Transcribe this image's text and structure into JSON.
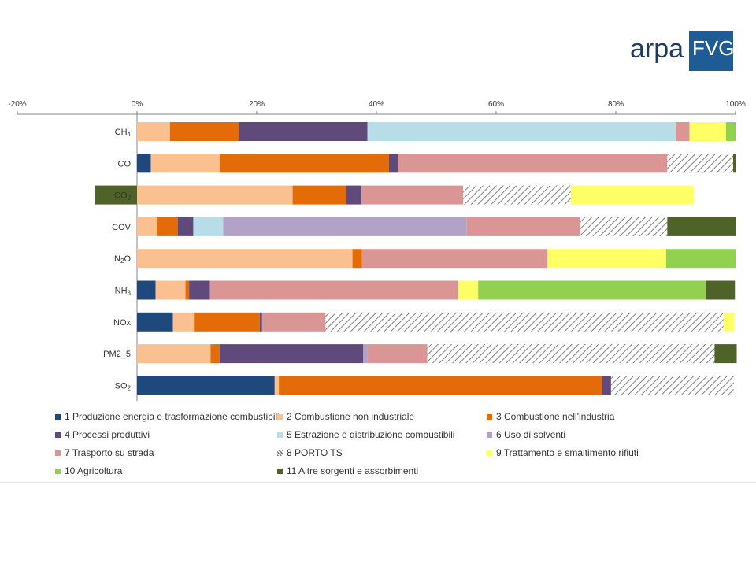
{
  "logo": {
    "text": "ARPA",
    "box_text": "FVG"
  },
  "chart_data": {
    "type": "bar",
    "orientation": "horizontal",
    "stacked": true,
    "percent_stacked": true,
    "xlim": [
      -20,
      100
    ],
    "x_ticks": [
      "-20%",
      "0%",
      "20%",
      "40%",
      "60%",
      "80%",
      "100%"
    ],
    "x_tick_values": [
      -20,
      0,
      20,
      40,
      60,
      80,
      100
    ],
    "categories": [
      "CH4",
      "CO",
      "CO2",
      "COV",
      "N2O",
      "NH3",
      "NOx",
      "PM2_5",
      "SO2"
    ],
    "category_labels": [
      {
        "base": "CH",
        "sub": "4"
      },
      {
        "base": "CO",
        "sub": ""
      },
      {
        "base": "CO",
        "sub": "2"
      },
      {
        "base": "COV",
        "sub": ""
      },
      {
        "base": "N",
        "sub": "2",
        "tail": "O"
      },
      {
        "base": "NH",
        "sub": "3"
      },
      {
        "base": "NOx",
        "sub": ""
      },
      {
        "base": "PM2_5",
        "sub": ""
      },
      {
        "base": "SO",
        "sub": "2"
      }
    ],
    "legend_position": "bottom",
    "grid": false,
    "series": [
      {
        "name": "1 Produzione energia e trasformazione combustibili",
        "color": "#1f497d",
        "values": [
          0,
          2.3,
          0,
          0,
          0,
          3.1,
          6,
          0,
          23
        ]
      },
      {
        "name": "2 Combustione non industriale",
        "color": "#fac090",
        "values": [
          5.5,
          11.5,
          26,
          3.3,
          36,
          5,
          3.5,
          12.3,
          0.7
        ]
      },
      {
        "name": "3 Combustione nell'industria",
        "color": "#e36c09",
        "values": [
          11.5,
          28.3,
          9,
          3.5,
          1.6,
          0.6,
          11,
          1.5,
          54
        ]
      },
      {
        "name": "4 Processi produttivi",
        "color": "#604a7b",
        "values": [
          21.5,
          1.5,
          2.5,
          2.6,
          0,
          3.5,
          0.4,
          24,
          1.5
        ]
      },
      {
        "name": "5 Estrazione e distribuzione combustibili",
        "color": "#b7dee8",
        "values": [
          51.5,
          0,
          0,
          5,
          0,
          0,
          0,
          0,
          0
        ]
      },
      {
        "name": "6 Uso di solventi",
        "color": "#b3a2c7",
        "values": [
          0,
          0,
          0,
          40.7,
          0,
          0,
          0,
          0.7,
          0
        ]
      },
      {
        "name": "7 Trasporto su strada",
        "color": "#da9694",
        "values": [
          2.3,
          45,
          17,
          19,
          31,
          41.5,
          10.6,
          10,
          0
        ]
      },
      {
        "name": "8 PORTO TS",
        "color": "#7f7f7f",
        "hatched": true,
        "values": [
          0,
          11,
          18,
          14.5,
          0,
          0,
          66.5,
          48,
          20.5
        ]
      },
      {
        "name": "9 Trattamento e smaltimento rifiuti",
        "color": "#ffff66",
        "values": [
          6.1,
          0,
          20.5,
          0,
          19.8,
          3.3,
          1.8,
          0,
          0
        ]
      },
      {
        "name": "10 Agricoltura",
        "color": "#92d050",
        "values": [
          1.6,
          0,
          0,
          0,
          11.6,
          38,
          0,
          0,
          0
        ]
      },
      {
        "name": "11 Altre sorgenti e assorbimenti",
        "color": "#4f6228",
        "values": [
          0,
          0.4,
          -7,
          11.4,
          0,
          4.9,
          0,
          3.7,
          0
        ]
      }
    ]
  }
}
